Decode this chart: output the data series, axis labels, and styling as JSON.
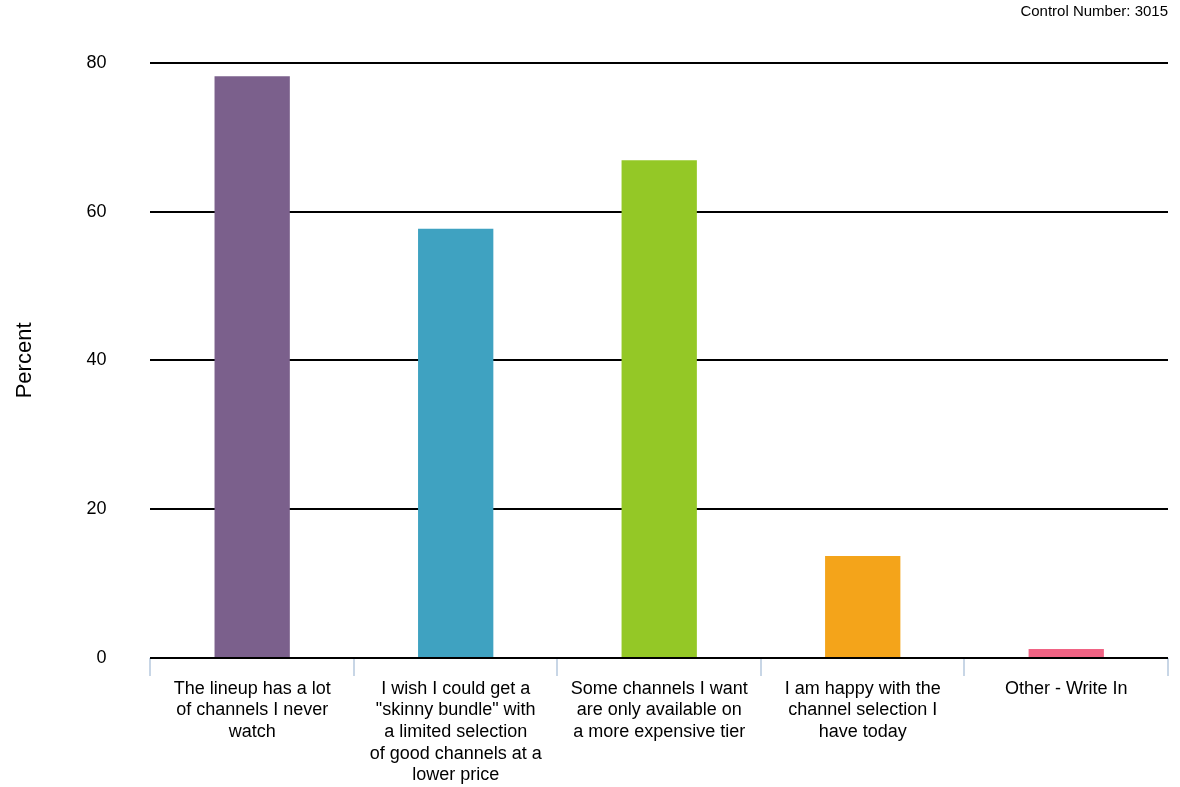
{
  "chart_data": {
    "type": "bar",
    "ylabel": "Percent",
    "categories": [
      "The lineup has a lot of channels I never watch",
      "I wish I could get a \"skinny bundle\" with a limited selection of good channels at a lower price",
      "Some channels I want are only available on a more expensive tier",
      "I am happy with the channel selection I have today",
      "Other - Write In"
    ],
    "values": [
      78.2,
      57.7,
      66.9,
      13.7,
      1.2
    ],
    "colors": [
      "#7b608c",
      "#3fa2c1",
      "#94c826",
      "#f4a41a",
      "#f06384"
    ],
    "ylim": [
      0,
      80
    ],
    "yticks": [
      0,
      20,
      40,
      60,
      80
    ],
    "grid": "y",
    "legend": false,
    "annotations": [
      "Control Number: 3015"
    ]
  }
}
